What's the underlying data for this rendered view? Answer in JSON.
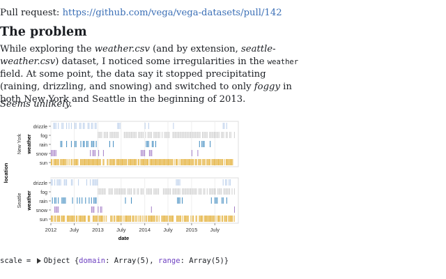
{
  "intro": {
    "pr_label": "Pull request:",
    "pr_link": "https://github.com/vega/vega-datasets/pull/142"
  },
  "heading": "The problem",
  "paragraph": {
    "t1": "While exploring the ",
    "e1": "weather.csv",
    "t2": " (and by extension, ",
    "e2": "seattle-weather.csv",
    "t3": ") dataset, I noticed some irregularities in the ",
    "c1": "weather",
    "t4": " field. At some point, the data say it stopped precipitating (raining, drizzling, and snowing) and switched to only ",
    "e3": "foggy",
    "t5": " in both New York and Seattle in the beginning of 2013."
  },
  "note": "Seems unlikely.",
  "chart_data": {
    "type": "strip",
    "xlabel": "date",
    "ylabel": "weather",
    "facet_label": "location",
    "facets": [
      "New York",
      "Seattle"
    ],
    "categories": [
      "drizzle",
      "fog",
      "rain",
      "snow",
      "sun"
    ],
    "x_ticks": [
      "2012",
      "July",
      "2013",
      "July",
      "2014",
      "July",
      "2015",
      "July"
    ],
    "colors": {
      "drizzle": "#aec7e8",
      "fog": "#c7c7c7",
      "rain": "#1f77b4",
      "snow": "#9467bd",
      "sun": "#e7ba52"
    },
    "series": [
      {
        "name": "New York",
        "segments": {
          "drizzle": [
            [
              "2012-01",
              "2013-01"
            ],
            [
              "2013-06",
              "2013-07"
            ],
            [
              "2014-01",
              "2014-02"
            ],
            [
              "2014-08",
              "2014-09"
            ],
            [
              "2015-09",
              "2015-10"
            ]
          ],
          "fog": [
            [
              "2013-01",
              "2015-12"
            ]
          ],
          "rain": [
            [
              "2012-01",
              "2013-01"
            ],
            [
              "2013-04",
              "2013-05"
            ],
            [
              "2014-01",
              "2014-04"
            ],
            [
              "2015-03",
              "2015-06"
            ]
          ],
          "snow": [
            [
              "2012-01",
              "2012-03"
            ],
            [
              "2012-11",
              "2013-03"
            ],
            [
              "2013-12",
              "2014-03"
            ],
            [
              "2015-01",
              "2015-03"
            ]
          ],
          "sun": [
            [
              "2012-01",
              "2015-12"
            ]
          ]
        }
      },
      {
        "name": "Seattle",
        "segments": {
          "drizzle": [
            [
              "2012-01",
              "2013-01"
            ],
            [
              "2014-09",
              "2014-10"
            ],
            [
              "2015-09",
              "2015-11"
            ]
          ],
          "fog": [
            [
              "2013-01",
              "2015-12"
            ]
          ],
          "rain": [
            [
              "2012-01",
              "2013-01"
            ],
            [
              "2013-08",
              "2013-10"
            ],
            [
              "2014-09",
              "2014-11"
            ],
            [
              "2015-06",
              "2015-10"
            ]
          ],
          "snow": [
            [
              "2012-01",
              "2012-03"
            ],
            [
              "2012-11",
              "2012-12"
            ],
            [
              "2013-01",
              "2013-02"
            ],
            [
              "2014-02",
              "2014-03"
            ],
            [
              "2015-11",
              "2015-12"
            ]
          ],
          "sun": [
            [
              "2012-01",
              "2015-12"
            ]
          ]
        }
      }
    ]
  },
  "repl": {
    "var": "scale = ",
    "obj": "Object {",
    "k1": "domain",
    "v1": ": Array(5), ",
    "k2": "range",
    "v2": ": Array(5)}"
  }
}
